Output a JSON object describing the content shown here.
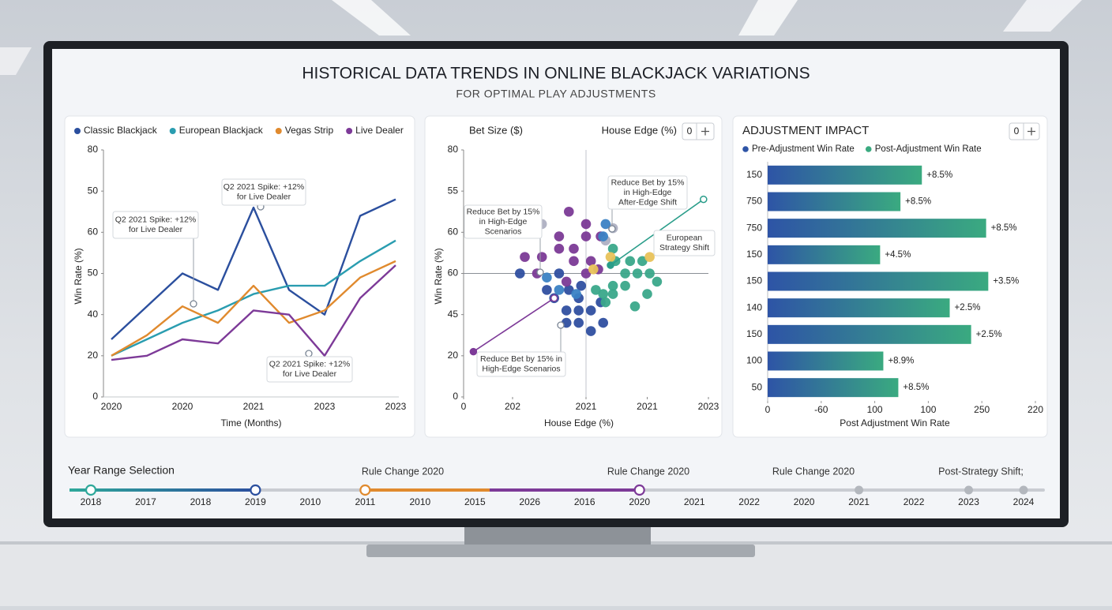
{
  "header": {
    "title": "HISTORICAL DATA TRENDS IN ONLINE BLACKJACK VARIATIONS",
    "subtitle": "FOR OPTIMAL PLAY ADJUSTMENTS"
  },
  "chart_data": [
    {
      "type": "line",
      "y_label": "Win Rate (%)",
      "x_label": "Time (Months)",
      "legend": "top",
      "categories": [
        "2020",
        null,
        "2020",
        null,
        "2021",
        null,
        "2023",
        null,
        "2023"
      ],
      "ylim": [
        0,
        60
      ],
      "yticks": [
        0,
        {
          "value": 10,
          "label": "20"
        },
        {
          "value": 20,
          "label": "40"
        },
        {
          "value": 30,
          "label": "50"
        },
        {
          "value": 40,
          "label": "60"
        },
        {
          "value": 50,
          "label": "50"
        },
        {
          "value": 60,
          "label": "80"
        }
      ],
      "series": [
        {
          "name": "Classic Blackjack",
          "color": "#2b4f9e",
          "values": [
            14,
            22,
            30,
            26,
            46,
            26,
            20,
            44,
            48
          ]
        },
        {
          "name": "European Blackjack",
          "color": "#2a9db0",
          "values": [
            10,
            14,
            18,
            21,
            25,
            27,
            27,
            33,
            38
          ]
        },
        {
          "name": "Vegas Strip",
          "color": "#e08a2e",
          "values": [
            10,
            15,
            22,
            18,
            27,
            18,
            21,
            29,
            33
          ]
        },
        {
          "name": "Live Dealer",
          "color": "#7d3a98",
          "values": [
            9,
            10,
            14,
            13,
            21,
            20,
            10,
            24,
            32
          ]
        }
      ],
      "annotations": [
        {
          "text": [
            "Q2 2021 Spike: +12%",
            "for Live Dealer"
          ]
        },
        {
          "text": [
            "Q2 2021 Spike: +12%",
            "for Live Dealer"
          ]
        },
        {
          "text": [
            "Q2 2021 Spike: +12%",
            "for Live Dealer"
          ]
        }
      ]
    },
    {
      "type": "scatter",
      "header_left": "Bet Size ($)",
      "header_right": "House Edge (%)",
      "control_value": "0",
      "y_label": "Win Rate (%)",
      "x_label": "House Edge (%)",
      "xlim": [
        0,
        100
      ],
      "ylim": [
        0,
        60
      ],
      "xticks": [
        0,
        {
          "value": 20,
          "label": "202"
        },
        {
          "value": 50,
          "label": "2021"
        },
        {
          "value": 75,
          "label": "2021"
        },
        {
          "value": 100,
          "label": "2023"
        }
      ],
      "yticks": [
        0,
        {
          "value": 10,
          "label": "20"
        },
        {
          "value": 20,
          "label": "45"
        },
        {
          "value": 30,
          "label": "60"
        },
        {
          "value": 40,
          "label": "60"
        },
        {
          "value": 50,
          "label": "55"
        },
        {
          "value": 60,
          "label": "80"
        }
      ],
      "crosshair": {
        "x": 50,
        "y": 30
      },
      "series": [
        {
          "color": "#2f4fa0",
          "x": [
            23,
            34,
            37,
            42,
            47,
            42,
            47,
            52,
            43,
            39,
            47,
            57,
            56,
            48,
            52
          ],
          "values": [
            30,
            26,
            24,
            21,
            21,
            18,
            18,
            16,
            26,
            30,
            24,
            18,
            23,
            27,
            21
          ]
        },
        {
          "color": "#7b3a96",
          "x": [
            43,
            25,
            32,
            39,
            45,
            50,
            52,
            39,
            45,
            56,
            50,
            42,
            50,
            30,
            55
          ],
          "values": [
            45,
            34,
            34,
            39,
            33,
            39,
            33,
            36,
            36,
            39,
            42,
            28,
            30,
            30,
            31
          ]
        },
        {
          "color": "#3aa88a",
          "x": [
            61,
            62,
            68,
            73,
            66,
            71,
            76,
            79,
            61,
            66,
            57,
            61,
            75,
            70,
            58,
            54
          ],
          "values": [
            36,
            33,
            33,
            33,
            30,
            30,
            30,
            28,
            27,
            27,
            25,
            25,
            25,
            22,
            23,
            26
          ]
        },
        {
          "color": "#aeb0c2",
          "x": [
            32,
            61,
            58
          ],
          "values": [
            42,
            41,
            38
          ]
        },
        {
          "color": "#e8c25a",
          "x": [
            60,
            76,
            53
          ],
          "values": [
            34,
            34,
            31
          ]
        },
        {
          "color": "#3b82c4",
          "x": [
            58,
            57,
            34,
            46,
            39
          ],
          "values": [
            42,
            39,
            29,
            25,
            26
          ]
        }
      ],
      "trend_lines": [
        {
          "color": "#7d3a98",
          "x": [
            4,
            37
          ],
          "values": [
            11,
            24
          ]
        },
        {
          "color": "#2a9d8a",
          "x": [
            60,
            98
          ],
          "values": [
            32,
            48
          ]
        }
      ],
      "annotations": [
        {
          "text": [
            "Reduce Bet by 15%",
            "in High-Edge",
            "Scenarios"
          ]
        },
        {
          "text": [
            "Reduce Bet by 15%",
            "in High-Edge",
            "After-Edge Shift"
          ]
        },
        {
          "text": [
            "European",
            "Strategy Shift"
          ]
        },
        {
          "text": [
            "Reduce Bet by 15% in",
            "High-Edge Scenarios"
          ]
        }
      ]
    },
    {
      "type": "bar",
      "orientation": "horizontal",
      "title": "ADJUSTMENT IMPACT",
      "control_value": "0",
      "legend_items": [
        {
          "name": "Pre-Adjustment Win Rate",
          "color": "#2e54a6"
        },
        {
          "name": "Post-Adjustment Win Rate",
          "color": "#3aaa80"
        }
      ],
      "x_label": "Post Adjustment Win Rate",
      "categories": [
        "150",
        "750",
        "750",
        "150",
        "150",
        "140",
        "150",
        "100",
        "50"
      ],
      "values": [
        144,
        124,
        204,
        105,
        206,
        170,
        190,
        108,
        122
      ],
      "notes": [
        "+8.5%",
        "+8.5%",
        "+8.5%",
        "+4.5%",
        "+3.5%",
        "+2.5%",
        "+2.5%",
        "+8.9%",
        "+8.5%"
      ],
      "xlim": [
        0,
        250
      ],
      "xticks": [
        0,
        {
          "value": 50,
          "label": "-60"
        },
        100,
        {
          "value": 150,
          "label": "100"
        },
        {
          "value": 200,
          "label": "250"
        },
        {
          "value": 250,
          "label": "220"
        }
      ]
    }
  ],
  "timeline": {
    "title": "Year Range Selection",
    "markers": [
      "Rule Change 2020",
      "Rule Change 2020",
      "Rule Change 2020",
      "Post-Strategy Shift;"
    ],
    "years": [
      "2018",
      "2017",
      "2018",
      "2019",
      "2010",
      "2011",
      "2010",
      "2015",
      "2026",
      "2016",
      "2020",
      "2021",
      "2022",
      "2020",
      "2021",
      "2022",
      "2023",
      "2024"
    ]
  }
}
